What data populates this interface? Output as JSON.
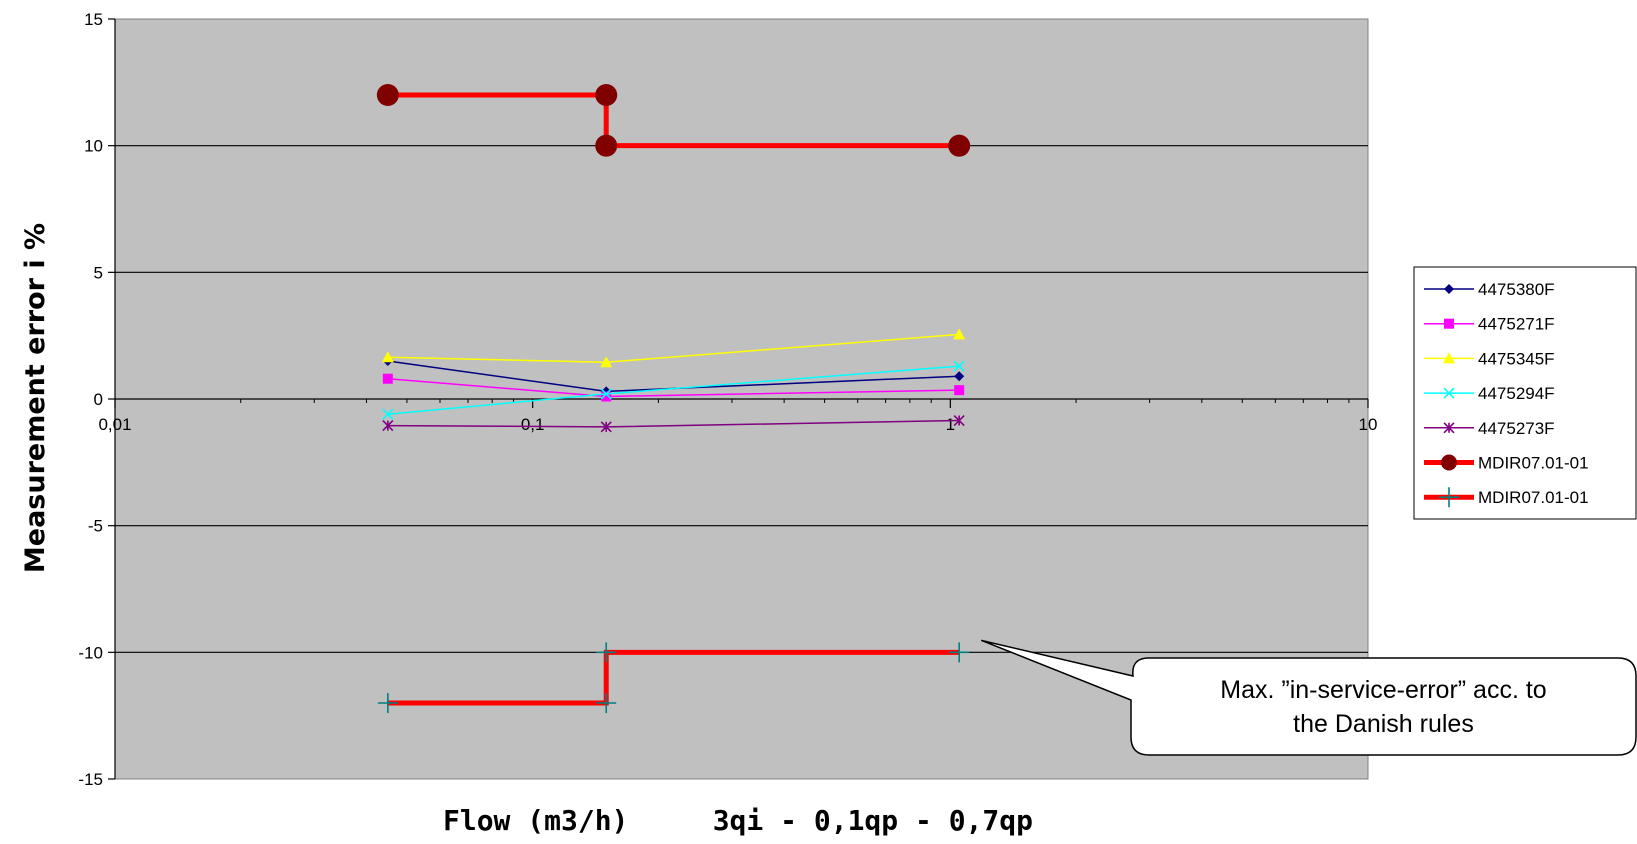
{
  "chart_data": {
    "type": "line",
    "title": "",
    "xlabel": "Flow (m3/h)     3qi - 0,1qp - 0,7qp",
    "ylabel": "Measurement error i %",
    "xscale": "log",
    "xlim": [
      0.01,
      10
    ],
    "ylim": [
      -15,
      15
    ],
    "x_ticks": [
      0.01,
      0.1,
      1,
      10
    ],
    "x_tick_labels": [
      "0,01",
      "0,1",
      "1",
      "10"
    ],
    "y_ticks": [
      15,
      10,
      5,
      0,
      -5,
      -10,
      -15
    ],
    "y_tick_labels": [
      "15",
      "10",
      "5",
      "0",
      "-5",
      "-10",
      "-15"
    ],
    "grid": "horizontal",
    "plot_background": "#c0c0c0",
    "legend_position": "right",
    "series": [
      {
        "name": "4475380F",
        "color": "#000080",
        "marker": "diamond",
        "x": [
          0.045,
          0.15,
          1.05
        ],
        "y": [
          1.5,
          0.3,
          0.9
        ]
      },
      {
        "name": "4475271F",
        "color": "#ff00ff",
        "marker": "square",
        "x": [
          0.045,
          0.15,
          1.05
        ],
        "y": [
          0.8,
          0.1,
          0.35
        ]
      },
      {
        "name": "4475345F",
        "color": "#ffff00",
        "marker": "triangle",
        "x": [
          0.045,
          0.15,
          1.05
        ],
        "y": [
          1.65,
          1.45,
          2.55
        ]
      },
      {
        "name": "4475294F",
        "color": "#00ffff",
        "marker": "x",
        "x": [
          0.045,
          0.15,
          1.05
        ],
        "y": [
          -0.6,
          0.2,
          1.3
        ]
      },
      {
        "name": "4475273F",
        "color": "#800080",
        "marker": "star",
        "x": [
          0.045,
          0.15,
          1.05
        ],
        "y": [
          -1.05,
          -1.1,
          -0.85
        ]
      },
      {
        "name": "MDIR07.01-01",
        "color": "#ff0000",
        "marker": "circle",
        "marker_color": "#800000",
        "x": [
          0.045,
          0.15,
          0.15,
          1.05
        ],
        "y": [
          12,
          12,
          10,
          10
        ]
      },
      {
        "name": "MDIR07.01-01",
        "color": "#ff0000",
        "marker": "plus",
        "marker_color": "#008080",
        "x": [
          0.045,
          0.15,
          0.15,
          1.05
        ],
        "y": [
          -12,
          -12,
          -10,
          -10
        ]
      }
    ],
    "annotations": [
      {
        "text_lines": [
          "Max. ”in-service-error” acc. to",
          "the Danish rules"
        ],
        "points_to": {
          "x": 1.05,
          "y": -10
        }
      }
    ]
  }
}
